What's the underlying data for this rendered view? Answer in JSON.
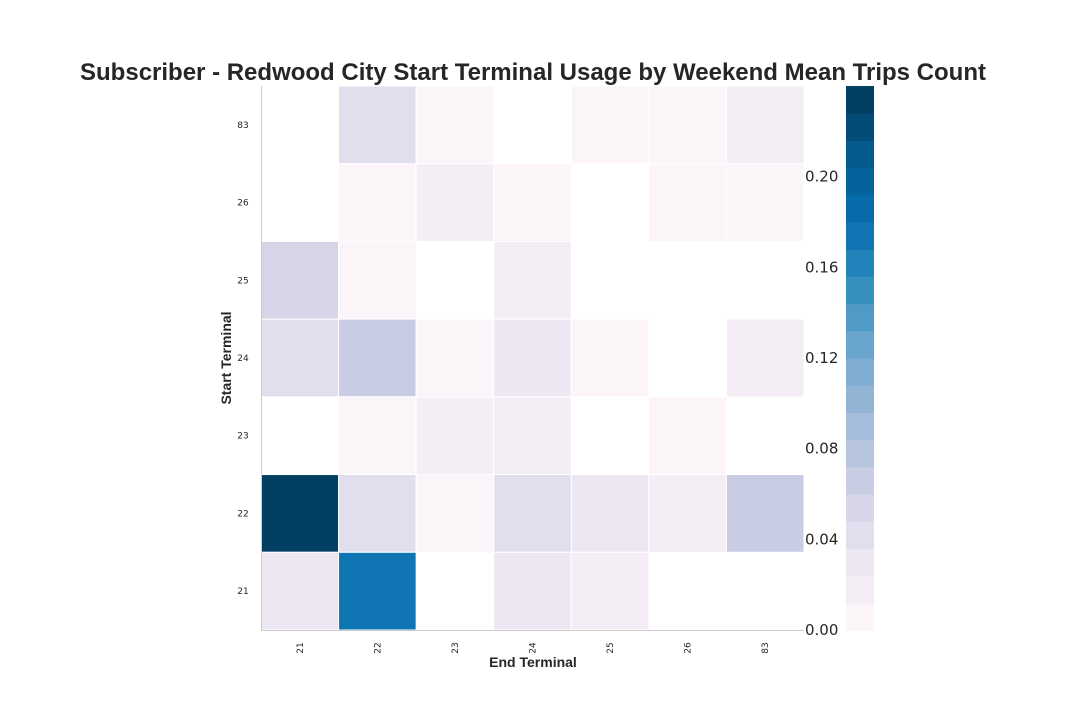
{
  "chart_data": {
    "type": "heatmap",
    "title": "Subscriber - Redwood City Start Terminal Usage by Weekend Mean Trips Count",
    "xlabel": "End Terminal",
    "ylabel": "Start Terminal",
    "x_categories": [
      "21",
      "22",
      "23",
      "24",
      "25",
      "26",
      "83"
    ],
    "y_categories_top_to_bottom": [
      "83",
      "26",
      "25",
      "24",
      "23",
      "22",
      "21"
    ],
    "values_top_to_bottom": [
      [
        null,
        0.04,
        0.01,
        null,
        0.01,
        0.01,
        0.015
      ],
      [
        null,
        0.01,
        0.015,
        0.01,
        null,
        0.01,
        0.01
      ],
      [
        0.05,
        0.01,
        null,
        0.015,
        null,
        null,
        null
      ],
      [
        0.04,
        0.07,
        0.01,
        0.025,
        0.01,
        null,
        0.015
      ],
      [
        null,
        0.01,
        0.015,
        0.015,
        null,
        0.01,
        null
      ],
      [
        0.24,
        0.04,
        0.01,
        0.04,
        0.035,
        0.015,
        0.07
      ],
      [
        0.03,
        0.17,
        null,
        0.03,
        0.015,
        null,
        null
      ]
    ],
    "colorbar": {
      "min": 0.0,
      "max": 0.24,
      "ticks": [
        "0.00",
        "0.04",
        "0.08",
        "0.12",
        "0.16",
        "0.20"
      ],
      "tick_values": [
        0.0,
        0.04,
        0.08,
        0.12,
        0.16,
        0.2
      ],
      "colormap": "PuBu",
      "levels": 20,
      "colors": [
        "#fff7fb",
        "#ece7f2",
        "#d0d1e6",
        "#a6bddb",
        "#74a9cf",
        "#3690c0",
        "#0570b0",
        "#045a8d",
        "#023858"
      ]
    },
    "grid": false
  }
}
